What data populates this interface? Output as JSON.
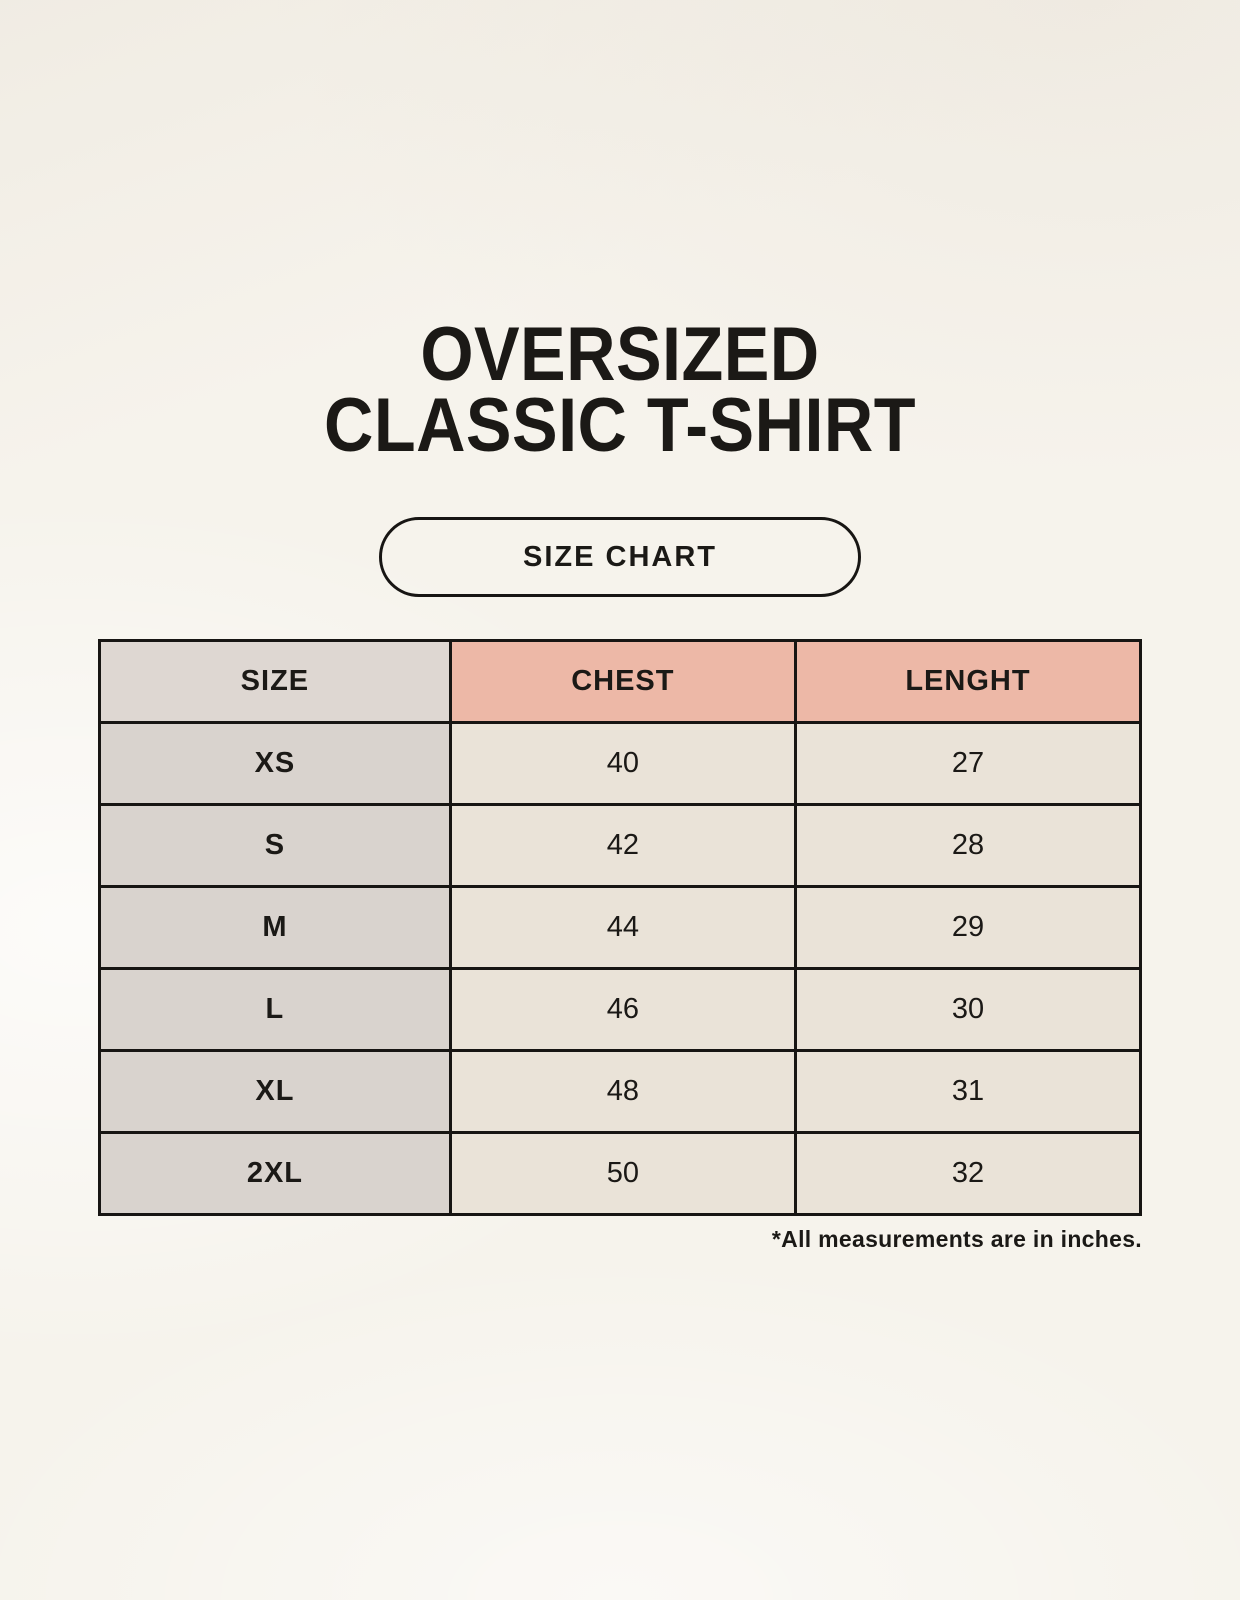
{
  "header": {
    "title_line1": "OVERSIZED",
    "title_line2": "CLASSIC T-SHIRT",
    "badge_label": "SIZE CHART"
  },
  "footnote": "*All measurements are in inches.",
  "colors": {
    "background": "#f6f3ec",
    "border": "#171513",
    "text": "#1b1916",
    "header_size_bg": "#ded7d2",
    "header_measure_bg": "#edb8a7",
    "size_col_bg": "#d9d3ce",
    "value_cell_bg": "#eae3d8"
  },
  "chart_data": {
    "type": "table",
    "title": "OVERSIZED CLASSIC T-SHIRT — SIZE CHART",
    "columns": [
      "SIZE",
      "CHEST",
      "LENGHT"
    ],
    "units": "inches",
    "rows": [
      {
        "size": "XS",
        "chest": 40,
        "lenght": 27
      },
      {
        "size": "S",
        "chest": 42,
        "lenght": 28
      },
      {
        "size": "M",
        "chest": 44,
        "lenght": 29
      },
      {
        "size": "L",
        "chest": 46,
        "lenght": 30
      },
      {
        "size": "XL",
        "chest": 48,
        "lenght": 31
      },
      {
        "size": "2XL",
        "chest": 50,
        "lenght": 32
      }
    ]
  }
}
